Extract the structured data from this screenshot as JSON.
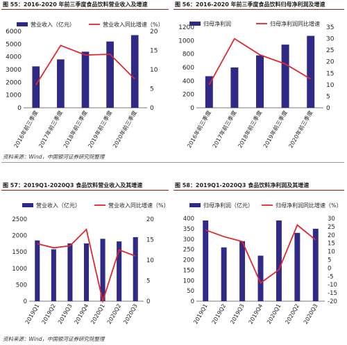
{
  "colors": {
    "bar": "#2f2a86",
    "line": "#e3262b",
    "rule": "#8a1c1c"
  },
  "figures": [
    {
      "title": "图 55：2016-2020 年前三季度食品饮料营业收入及增速",
      "source": "",
      "chart_data": {
        "type": "bar",
        "title": "图 55：2016-2020 年前三季度食品饮料营业收入及增速",
        "categories": [
          "2016年前三季度",
          "2017年前三季度",
          "2018年前三季度",
          "2019年前三季度",
          "2020年前三季度"
        ],
        "series": [
          {
            "name": "营业收入（亿元）",
            "type": "bar",
            "axis": "left",
            "values": [
              3250,
              3800,
              4400,
              5200,
              5700
            ]
          },
          {
            "name": "营业收入同比增速（%）",
            "type": "line",
            "axis": "right",
            "values": [
              6.0,
              16.3,
              13.8,
              14.0,
              7.5
            ]
          }
        ],
        "ylim_left": [
          0,
          6000
        ],
        "yticks_left": [
          0,
          1000,
          2000,
          3000,
          4000,
          5000,
          6000
        ],
        "ylim_right": [
          0,
          20
        ],
        "yticks_right": [
          0,
          5,
          10,
          15,
          20
        ],
        "legend": "top"
      }
    },
    {
      "title": "图 56：2016-2020 年前三季度食品饮料归母净利润及增速",
      "source": "",
      "chart_data": {
        "type": "bar",
        "title": "图 56：2016-2020 年前三季度食品饮料归母净利润及增速",
        "categories": [
          "2016年前三季度",
          "2017年前三季度",
          "2018年前三季度",
          "2019年前三季度",
          "2020年前三季度"
        ],
        "series": [
          {
            "name": "归母净利润",
            "type": "bar",
            "axis": "left",
            "values": [
              470,
              600,
              780,
              940,
              1070
            ]
          },
          {
            "name": "归母净利润同比增速",
            "type": "line",
            "axis": "right",
            "values": [
              10.0,
              30.0,
              23.0,
              19.0,
              12.5
            ]
          }
        ],
        "ylim_left": [
          0,
          1200
        ],
        "yticks_left": [
          0,
          200,
          400,
          600,
          800,
          1000,
          1200
        ],
        "ylim_right": [
          0,
          35
        ],
        "yticks_right": [
          0,
          5,
          10,
          15,
          20,
          25,
          30,
          35
        ],
        "legend": "top"
      }
    },
    {
      "title": "图 57：2019Q1-2020Q3 食品饮料营业收入及其增速",
      "source": "资料来源：Wind，中国银河证券研究院整理",
      "chart_data": {
        "type": "bar",
        "title": "图 57：2019Q1-2020Q3 食品饮料营业收入及其增速",
        "categories": [
          "2019Q1",
          "2019Q2",
          "2019Q3",
          "2019Q4",
          "2020Q1",
          "2020Q2",
          "2020Q3"
        ],
        "series": [
          {
            "name": "营业收入（亿元）",
            "type": "bar",
            "axis": "left",
            "values": [
              1850,
              1580,
              1760,
              1760,
              1900,
              1820,
              1950
            ]
          },
          {
            "name": "营业收入同比增速（%）",
            "type": "line",
            "axis": "right",
            "values": [
              14.0,
              13.0,
              13.5,
              17.5,
              0.0,
              12.5,
              11.0
            ]
          }
        ],
        "ylim_left": [
          0,
          2500
        ],
        "yticks_left": [
          0,
          500,
          1000,
          1500,
          2000,
          2500
        ],
        "ylim_right": [
          0,
          20
        ],
        "yticks_right": [
          0,
          5,
          10,
          15,
          20
        ],
        "legend": "top"
      }
    },
    {
      "title": "图 58：2019Q1-2020Q3 食品饮料净利润及其增速",
      "source": "资料来源：Wind，中国银河证券研究院整理",
      "chart_data": {
        "type": "bar",
        "title": "图 58：2019Q1-2020Q3 食品饮料净利润及其增速",
        "categories": [
          "2019Q1",
          "2019Q2",
          "2019Q3",
          "2019Q4",
          "2020Q1",
          "2020Q2",
          "2020Q3"
        ],
        "series": [
          {
            "name": "归母净利润（亿元）",
            "type": "bar",
            "axis": "left",
            "values": [
              390,
              260,
              290,
              220,
              390,
              330,
              350
            ]
          },
          {
            "name": "归母净利润同比增速（%）",
            "type": "line",
            "axis": "right",
            "values": [
              23.0,
              19.0,
              16.0,
              -9.0,
              -1.0,
              26.0,
              17.0
            ]
          }
        ],
        "ylim_left": [
          0,
          400
        ],
        "yticks_left": [
          0,
          50,
          100,
          150,
          200,
          250,
          300,
          350,
          400
        ],
        "ylim_right": [
          -20,
          30
        ],
        "yticks_right": [
          -20,
          -15,
          -10,
          -5,
          0,
          5,
          10,
          15,
          20,
          25,
          30
        ],
        "legend": "top"
      }
    }
  ],
  "mid_source": "资料来源：Wind，中国银河证券研究院整理"
}
